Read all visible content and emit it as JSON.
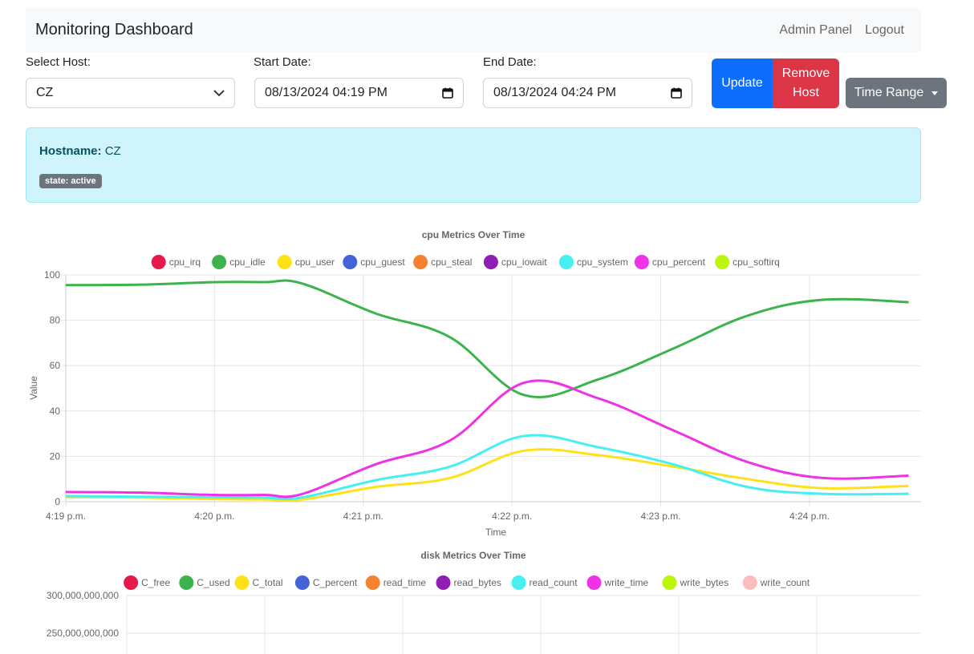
{
  "navbar": {
    "brand": "Monitoring Dashboard",
    "links": [
      "Admin Panel",
      "Logout"
    ]
  },
  "form": {
    "host_label": "Select Host:",
    "host_value": "CZ",
    "start_label": "Start Date:",
    "start_value": "08/13/2024 04:19 PM",
    "end_label": "End Date:",
    "end_value": "08/13/2024 04:24 PM",
    "update_label": "Update",
    "remove_label": "Remove Host",
    "range_label": "Time Range"
  },
  "host_info": {
    "hostname_label": "Hostname:",
    "hostname_value": "CZ",
    "state_badge": "state: active"
  },
  "chart_data": [
    {
      "type": "line",
      "title": "cpu Metrics Over Time",
      "xlabel": "Time",
      "ylabel": "Value",
      "ylim": [
        0,
        100
      ],
      "yticks": [
        0,
        20,
        40,
        60,
        80,
        100
      ],
      "xlim": [
        "16:19:00",
        "16:24:45"
      ],
      "xticks": [
        "4:19 p.m.",
        "4:20 p.m.",
        "4:21 p.m.",
        "4:22 p.m.",
        "4:23 p.m.",
        "4:24 p.m."
      ],
      "x": [
        "16:19:00",
        "16:19:30",
        "16:20:00",
        "16:20:20",
        "16:20:35",
        "16:21:05",
        "16:21:35",
        "16:22:05",
        "16:22:35",
        "16:23:05",
        "16:23:35",
        "16:24:05",
        "16:24:40"
      ],
      "grid": true,
      "legend_position": "top",
      "series": [
        {
          "name": "cpu_irq",
          "color": "#e6194b",
          "values": null
        },
        {
          "name": "cpu_idle",
          "color": "#3cb44b",
          "values": [
            95.5,
            95.7,
            96.8,
            96.8,
            96.3,
            83.0,
            72.5,
            47.0,
            54.0,
            67.5,
            82.0,
            89.0,
            88.0
          ]
        },
        {
          "name": "cpu_user",
          "color": "#ffe119",
          "values": [
            2.0,
            1.8,
            1.2,
            1.0,
            0.9,
            6.5,
            10.5,
            22.5,
            20.5,
            15.5,
            10.0,
            6.0,
            7.0
          ]
        },
        {
          "name": "cpu_guest",
          "color": "#4363d8",
          "values": null
        },
        {
          "name": "cpu_steal",
          "color": "#f58231",
          "values": null
        },
        {
          "name": "cpu_iowait",
          "color": "#911eb4",
          "values": null
        },
        {
          "name": "cpu_system",
          "color": "#46f0f0",
          "values": [
            2.5,
            2.2,
            2.0,
            1.8,
            1.8,
            9.5,
            15.5,
            29.0,
            24.0,
            16.5,
            6.5,
            3.5,
            3.5
          ]
        },
        {
          "name": "cpu_percent",
          "color": "#f032e6",
          "values": [
            4.3,
            4.0,
            3.0,
            3.0,
            3.3,
            16.5,
            27.0,
            52.5,
            45.5,
            31.5,
            17.5,
            10.5,
            11.5
          ]
        },
        {
          "name": "cpu_softirq",
          "color": "#bcf60c",
          "values": null
        }
      ]
    },
    {
      "type": "line",
      "title": "disk Metrics Over Time",
      "yticks_visible": [
        "300,000,000,000",
        "250,000,000,000"
      ],
      "grid": true,
      "legend_position": "top",
      "series": [
        {
          "name": "C_free",
          "color": "#e6194b"
        },
        {
          "name": "C_used",
          "color": "#3cb44b"
        },
        {
          "name": "C_total",
          "color": "#ffe119"
        },
        {
          "name": "C_percent",
          "color": "#4363d8"
        },
        {
          "name": "read_time",
          "color": "#f58231"
        },
        {
          "name": "read_bytes",
          "color": "#911eb4"
        },
        {
          "name": "read_count",
          "color": "#46f0f0"
        },
        {
          "name": "write_time",
          "color": "#f032e6"
        },
        {
          "name": "write_bytes",
          "color": "#bcf60c"
        },
        {
          "name": "write_count",
          "color": "#fabebe"
        }
      ]
    }
  ]
}
